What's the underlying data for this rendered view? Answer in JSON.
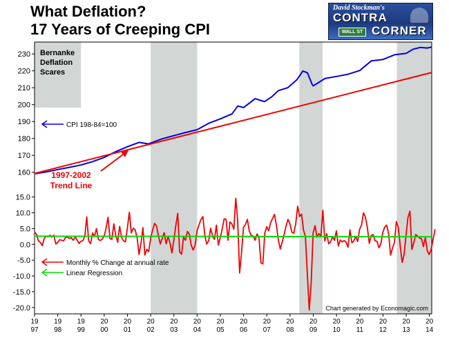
{
  "header": {
    "title_line1": "What Deflation?",
    "title_line2": "17 Years of Creeping CPI",
    "logo_byline": "David Stockman's",
    "logo_word1": "CONTRA",
    "logo_word2": "CORNER",
    "logo_sign": "WALL ST"
  },
  "chart_data": {
    "type": "line",
    "x_tick_labels": [
      [
        "19",
        "97"
      ],
      [
        "19",
        "98"
      ],
      [
        "19",
        "99"
      ],
      [
        "20",
        "00"
      ],
      [
        "20",
        "01"
      ],
      [
        "20",
        "02"
      ],
      [
        "20",
        "03"
      ],
      [
        "20",
        "04"
      ],
      [
        "20",
        "05"
      ],
      [
        "20",
        "06"
      ],
      [
        "20",
        "07"
      ],
      [
        "20",
        "08"
      ],
      [
        "20",
        "09"
      ],
      [
        "20",
        "10"
      ],
      [
        "20",
        "11"
      ],
      [
        "20",
        "12"
      ],
      [
        "20",
        "13"
      ],
      [
        "20",
        "14"
      ]
    ],
    "xlim": [
      1997.0,
      2014.1
    ],
    "upper_panel": {
      "ylim": [
        155,
        237
      ],
      "y_ticks": [
        160,
        170,
        180,
        190,
        200,
        210,
        220,
        230
      ],
      "series": [
        {
          "name": "CPI 198-84=100",
          "color": "#0000dd",
          "points": [
            [
              1997.0,
              159.1
            ],
            [
              1997.5,
              160.2
            ],
            [
              1998.0,
              161.6
            ],
            [
              1998.5,
              162.9
            ],
            [
              1999.0,
              164.3
            ],
            [
              1999.5,
              166.3
            ],
            [
              2000.0,
              168.8
            ],
            [
              2000.5,
              172.2
            ],
            [
              2001.0,
              175.1
            ],
            [
              2001.5,
              177.7
            ],
            [
              2001.9,
              176.8
            ],
            [
              2002.5,
              179.8
            ],
            [
              2003.0,
              181.7
            ],
            [
              2003.5,
              183.5
            ],
            [
              2004.0,
              185.2
            ],
            [
              2004.5,
              189.0
            ],
            [
              2005.0,
              191.6
            ],
            [
              2005.5,
              194.5
            ],
            [
              2005.75,
              199.2
            ],
            [
              2006.0,
              198.3
            ],
            [
              2006.5,
              203.5
            ],
            [
              2006.9,
              201.8
            ],
            [
              2007.2,
              204.5
            ],
            [
              2007.5,
              208.3
            ],
            [
              2007.9,
              210.0
            ],
            [
              2008.3,
              214.8
            ],
            [
              2008.55,
              219.9
            ],
            [
              2008.75,
              218.8
            ],
            [
              2008.95,
              212.0
            ],
            [
              2009.0,
              211.1
            ],
            [
              2009.5,
              215.4
            ],
            [
              2010.0,
              216.7
            ],
            [
              2010.5,
              218.0
            ],
            [
              2011.0,
              220.2
            ],
            [
              2011.5,
              225.9
            ],
            [
              2012.0,
              226.7
            ],
            [
              2012.5,
              229.5
            ],
            [
              2012.9,
              230.2
            ],
            [
              2013.0,
              230.3
            ],
            [
              2013.3,
              232.8
            ],
            [
              2013.6,
              233.8
            ],
            [
              2013.9,
              233.5
            ],
            [
              2014.1,
              234.1
            ]
          ]
        },
        {
          "name": "1997-2002 Trend Line",
          "color": "#ee0000",
          "points": [
            [
              1997.0,
              159.3
            ],
            [
              2014.1,
              219.0
            ]
          ]
        }
      ],
      "shaded_regions": [
        [
          1997.0,
          1999.0
        ],
        [
          2002.0,
          2004.0
        ],
        [
          2008.4,
          2009.4
        ],
        [
          2012.6,
          2014.1
        ]
      ],
      "annotations": {
        "shade_label": [
          "Bernanke",
          "Deflation",
          "Scares"
        ],
        "cpi_legend": "CPI 198-84=100",
        "trend_label": [
          "1997-2002",
          "Trend Line"
        ]
      }
    },
    "lower_panel": {
      "ylim": [
        -22,
        16
      ],
      "y_ticks": [
        15.0,
        10.0,
        5.0,
        0.0,
        -5.0,
        -10.0,
        -15.0,
        -20.0
      ],
      "y_tick_labels": [
        "15.0",
        "10.0",
        "5.0",
        "0.0",
        "-5.0",
        "-10.0",
        "-15.0",
        "-20.0"
      ],
      "shaded_regions": [
        [
          2002.0,
          2004.0
        ],
        [
          2008.4,
          2009.4
        ],
        [
          2012.6,
          2014.1
        ]
      ],
      "series": [
        {
          "name": "Monthly % Change at annual rate",
          "color": "#ee0000",
          "x_start": 1997.0,
          "x_step": 0.0833,
          "values": [
            3.9,
            3.2,
            1.1,
            0.6,
            -0.4,
            1.9,
            2.6,
            2.4,
            2.9,
            2.3,
            2.9,
            0.1,
            0.6,
            1.5,
            1.3,
            1.1,
            2.2,
            2.3,
            1.9,
            2.1,
            1.3,
            2.4,
            1.4,
            0.3,
            1.0,
            1.2,
            2.6,
            8.7,
            1.1,
            0.2,
            3.6,
            2.5,
            5.0,
            1.6,
            1.2,
            1.7,
            2.6,
            5.2,
            8.6,
            1.9,
            1.6,
            6.5,
            2.8,
            0.7,
            5.7,
            2.2,
            1.1,
            0.8,
            5.2,
            10.2,
            3.6,
            5.1,
            4.6,
            2.1,
            -3.2,
            0.3,
            5.3,
            -3.4,
            -1.6,
            -2.3,
            2.0,
            4.5,
            6.6,
            5.9,
            2.8,
            0.1,
            1.9,
            3.7,
            0.2,
            2.5,
            0.5,
            -2.7,
            1.4,
            5.9,
            9.8,
            -2.4,
            -3.1,
            2.3,
            1.3,
            4.1,
            3.2,
            -0.3,
            -1.8,
            -0.2,
            4.3,
            6.2,
            7.9,
            8.8,
            2.8,
            0.1,
            1.1,
            5.1,
            2.6,
            1.6,
            6.1,
            -0.2,
            2.1,
            4.9,
            8.1,
            7.9,
            1.3,
            7.1,
            6.5,
            4.8,
            14.6,
            7.4,
            -9.1,
            -2.4,
            5.4,
            6.3,
            7.9,
            4.2,
            2.8,
            2.6,
            1.3,
            3.3,
            2.2,
            -5.8,
            -6.2,
            3.5,
            5.6,
            4.3,
            6.8,
            8.2,
            9.5,
            6.1,
            1.5,
            -1.5,
            0.7,
            3.1,
            5.8,
            7.9,
            6.5,
            3.9,
            3.5,
            6.5,
            12.1,
            8.8,
            9.6,
            4.6,
            2.5,
            -9.2,
            -20.8,
            -12.1,
            3.6,
            5.9,
            2.3,
            3.4,
            2.6,
            10.8,
            1.1,
            3.4,
            0.2,
            0.8,
            2.4,
            1.3,
            4.3,
            -0.5,
            1.4,
            0.8,
            1.2,
            0.7,
            -0.9,
            4.6,
            0.5,
            1.1,
            2.6,
            0.9,
            4.8,
            6.1,
            10.0,
            8.6,
            5.4,
            0.3,
            2.8,
            3.1,
            1.1,
            1.0,
            -1.1,
            0.2,
            3.8,
            5.5,
            6.1,
            3.3,
            -3.4,
            -1.2,
            0.6,
            7.2,
            5.4,
            -0.5,
            -5.7,
            -3.2,
            2.9,
            8.5,
            10.5,
            -1.6,
            0.5,
            3.1,
            2.6,
            2.0,
            1.8,
            -0.7,
            2.1,
            -2.1,
            -3.2,
            -1.6,
            1.6,
            4.8
          ]
        },
        {
          "name": "Linear Regression",
          "color": "#00dd00",
          "points": [
            [
              1997.0,
              2.6
            ],
            [
              2014.1,
              2.4
            ]
          ]
        }
      ],
      "annotations": {
        "legend_change": "Monthly % Change at annual rate",
        "legend_regression": "Linear Regression",
        "credit": "Chart generated by Economagic.com"
      }
    }
  }
}
